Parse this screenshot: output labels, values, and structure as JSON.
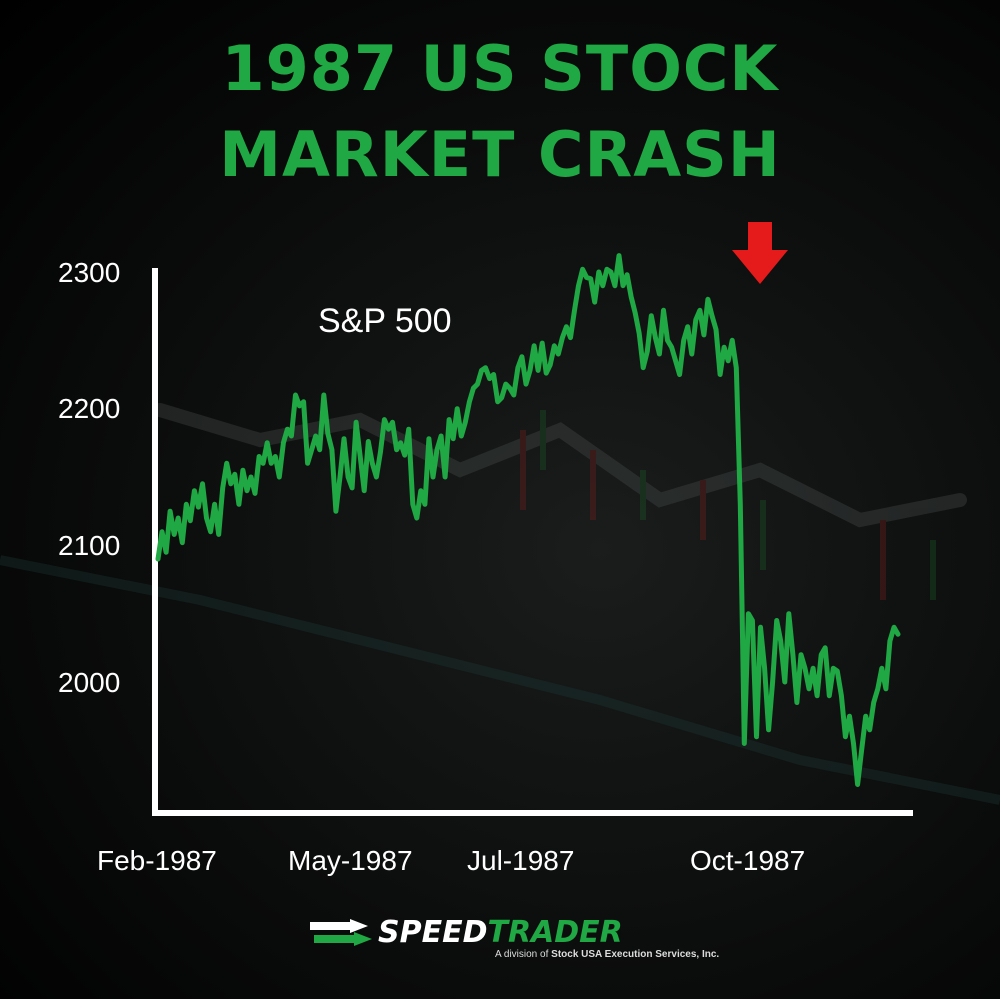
{
  "title": {
    "line1": "1987 US STOCK",
    "line2": "MARKET CRASH"
  },
  "colors": {
    "title": "#1fa843",
    "line": "#1fa843",
    "axis": "#ffffff",
    "arrow": "#e51b1b"
  },
  "chart_data": {
    "type": "line",
    "title": "1987 US STOCK MARKET CRASH",
    "series_label": "S&P 500",
    "xlabel": "",
    "ylabel": "",
    "ylim": [
      1960,
      2300
    ],
    "yticks": [
      2300,
      2200,
      2100,
      2000
    ],
    "xtick_labels": [
      "Feb-1987",
      "May-1987",
      "Jul-1987",
      "Oct-1987"
    ],
    "grid": false,
    "legend": "none",
    "annotation": "red-down-arrow",
    "series": [
      {
        "name": "S&P 500",
        "values": [
          2090,
          2110,
          2095,
          2125,
          2108,
          2120,
          2102,
          2130,
          2118,
          2140,
          2128,
          2145,
          2120,
          2110,
          2130,
          2108,
          2142,
          2160,
          2145,
          2152,
          2130,
          2155,
          2140,
          2150,
          2138,
          2165,
          2160,
          2175,
          2160,
          2165,
          2150,
          2175,
          2185,
          2180,
          2210,
          2202,
          2205,
          2160,
          2170,
          2180,
          2170,
          2210,
          2182,
          2170,
          2125,
          2150,
          2178,
          2150,
          2142,
          2190,
          2165,
          2140,
          2176,
          2160,
          2150,
          2168,
          2192,
          2185,
          2190,
          2170,
          2175,
          2166,
          2185,
          2130,
          2120,
          2140,
          2130,
          2178,
          2150,
          2170,
          2180,
          2150,
          2192,
          2178,
          2200,
          2180,
          2190,
          2205,
          2215,
          2218,
          2228,
          2230,
          2222,
          2225,
          2205,
          2208,
          2218,
          2215,
          2210,
          2230,
          2238,
          2218,
          2228,
          2246,
          2228,
          2248,
          2226,
          2232,
          2246,
          2240,
          2252,
          2260,
          2252,
          2272,
          2290,
          2302,
          2296,
          2295,
          2278,
          2300,
          2290,
          2302,
          2300,
          2290,
          2312,
          2290,
          2298,
          2282,
          2270,
          2255,
          2230,
          2242,
          2268,
          2252,
          2240,
          2272,
          2250,
          2245,
          2235,
          2225,
          2250,
          2260,
          2240,
          2265,
          2272,
          2254,
          2280,
          2268,
          2258,
          2225,
          2245,
          2235,
          2250,
          2230,
          2130,
          1955,
          2050,
          2045,
          1960,
          2040,
          2010,
          1965,
          2000,
          2045,
          2030,
          2000,
          2050,
          2020,
          1985,
          2020,
          2010,
          1995,
          2010,
          1990,
          2020,
          2025,
          1990,
          2010,
          2008,
          1990,
          1960,
          1975,
          1955,
          1925,
          1950,
          1975,
          1965,
          1985,
          1995,
          2010,
          1995,
          2030,
          2040,
          2035
        ]
      }
    ]
  },
  "logo": {
    "word_speed": "SPEED",
    "word_trader": "TRADER",
    "sub_prefix": "A division of ",
    "sub_bold": "Stock USA Execution Services, Inc."
  }
}
